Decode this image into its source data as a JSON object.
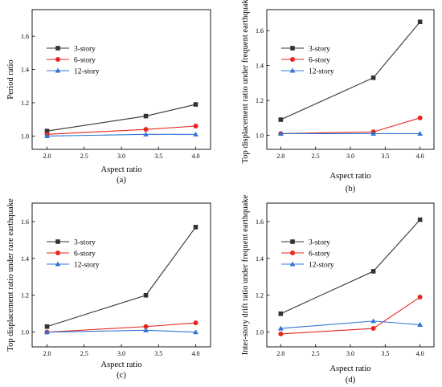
{
  "chart_data": [
    {
      "type": "line",
      "caption": "(a)",
      "xlabel": "Aspect ratio",
      "ylabel": "Period ratio",
      "xlim": [
        1.8,
        4.2
      ],
      "ylim": [
        0.92,
        1.76
      ],
      "xticks": [
        "2.0",
        "2.5",
        "3.0",
        "3.5",
        "4.0"
      ],
      "yticks": [
        "1.0",
        "1.2",
        "1.4",
        "1.6"
      ],
      "legend_position": "upper-left",
      "x": [
        2.0,
        3.33,
        4.0
      ],
      "series": [
        {
          "name": "3-story",
          "values": [
            1.03,
            1.12,
            1.19
          ],
          "color": "#333333",
          "marker": "square"
        },
        {
          "name": "6-story",
          "values": [
            1.01,
            1.04,
            1.06
          ],
          "color": "#e8261f",
          "marker": "circle"
        },
        {
          "name": "12-story",
          "values": [
            1.0,
            1.01,
            1.01
          ],
          "color": "#2e75d6",
          "marker": "triangle"
        }
      ]
    },
    {
      "type": "line",
      "caption": "(b)",
      "xlabel": "Aspect ratio",
      "ylabel": "Top displacement ratio under frequent earthquake",
      "xlim": [
        1.8,
        4.2
      ],
      "ylim": [
        0.92,
        1.72
      ],
      "xticks": [
        "2.0",
        "2.5",
        "3.0",
        "3.5",
        "4.0"
      ],
      "yticks": [
        "1.0",
        "1.2",
        "1.4",
        "1.6"
      ],
      "legend_position": "upper-left",
      "x": [
        2.0,
        3.33,
        4.0
      ],
      "series": [
        {
          "name": "3-story",
          "values": [
            1.09,
            1.33,
            1.65
          ],
          "color": "#333333",
          "marker": "square"
        },
        {
          "name": "6-story",
          "values": [
            1.01,
            1.02,
            1.1
          ],
          "color": "#e8261f",
          "marker": "circle"
        },
        {
          "name": "12-story",
          "values": [
            1.01,
            1.01,
            1.01
          ],
          "color": "#2e75d6",
          "marker": "triangle"
        }
      ]
    },
    {
      "type": "line",
      "caption": "(c)",
      "xlabel": "Aspect ratio",
      "ylabel": "Top displacement ratio under rare earthquake",
      "xlim": [
        1.8,
        4.2
      ],
      "ylim": [
        0.92,
        1.7
      ],
      "xticks": [
        "2.0",
        "2.5",
        "3.0",
        "3.5",
        "4.0"
      ],
      "yticks": [
        "1.0",
        "1.2",
        "1.4",
        "1.6"
      ],
      "legend_position": "upper-left",
      "x": [
        2.0,
        3.33,
        4.0
      ],
      "series": [
        {
          "name": "3-story",
          "values": [
            1.03,
            1.2,
            1.57
          ],
          "color": "#333333",
          "marker": "square"
        },
        {
          "name": "6-story",
          "values": [
            1.0,
            1.03,
            1.05
          ],
          "color": "#e8261f",
          "marker": "circle"
        },
        {
          "name": "12-story",
          "values": [
            1.0,
            1.01,
            1.0
          ],
          "color": "#2e75d6",
          "marker": "triangle"
        }
      ]
    },
    {
      "type": "line",
      "caption": "(d)",
      "xlabel": "Aspect ratio",
      "ylabel": "Inter-story drift ratio under frequent earthquake",
      "xlim": [
        1.8,
        4.2
      ],
      "ylim": [
        0.92,
        1.7
      ],
      "xticks": [
        "2.0",
        "2.5",
        "3.0",
        "3.5",
        "4.0"
      ],
      "yticks": [
        "1.0",
        "1.2",
        "1.4",
        "1.6"
      ],
      "legend_position": "upper-left",
      "x": [
        2.0,
        3.33,
        4.0
      ],
      "series": [
        {
          "name": "3-story",
          "values": [
            1.1,
            1.33,
            1.61
          ],
          "color": "#333333",
          "marker": "square"
        },
        {
          "name": "6-story",
          "values": [
            0.99,
            1.02,
            1.19
          ],
          "color": "#e8261f",
          "marker": "circle"
        },
        {
          "name": "12-story",
          "values": [
            1.02,
            1.06,
            1.04
          ],
          "color": "#2e75d6",
          "marker": "triangle"
        }
      ]
    }
  ]
}
